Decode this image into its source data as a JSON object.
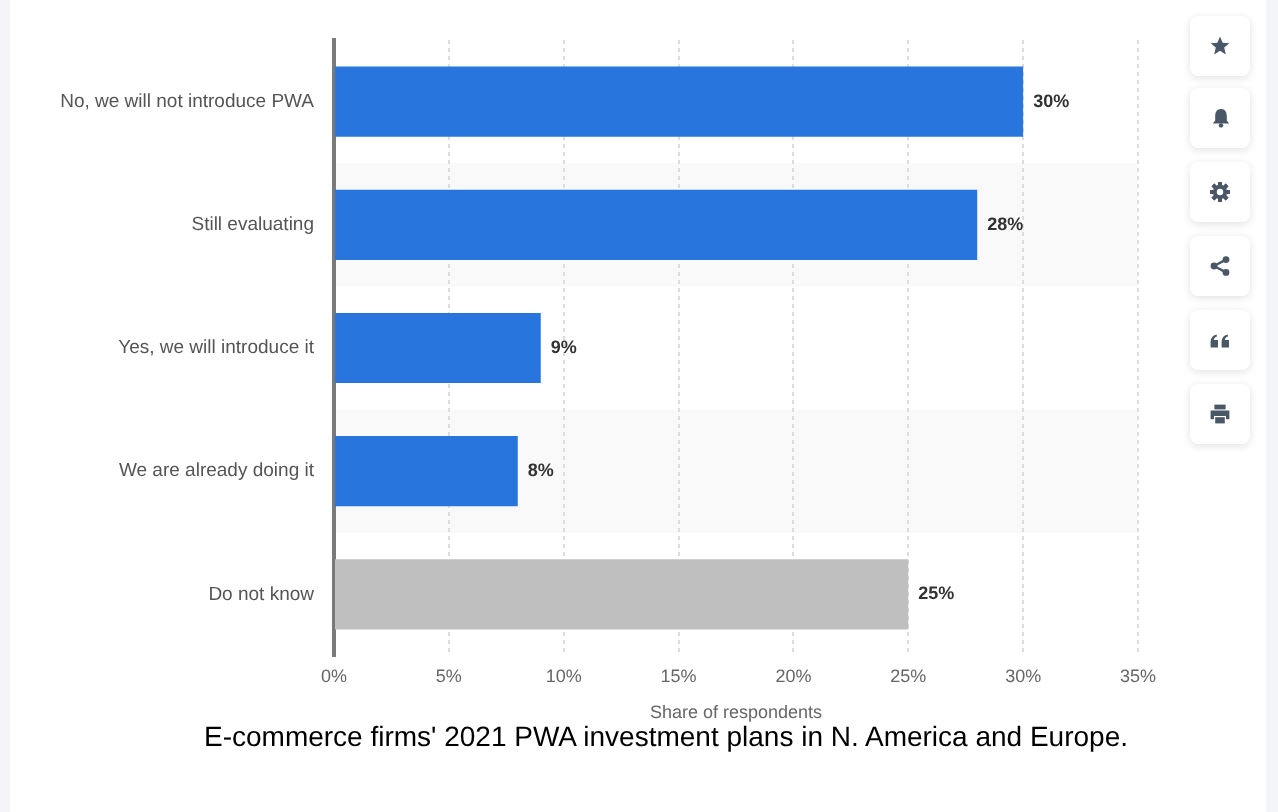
{
  "chart_data": {
    "type": "bar",
    "orientation": "horizontal",
    "title": "E-commerce firms' 2021 PWA investment plans in N. America and Europe.",
    "xlabel": "Share of respondents",
    "categories": [
      "No, we will not introduce PWA",
      "Still evaluating",
      "Yes, we will introduce it",
      "We are already doing it",
      "Do not know"
    ],
    "values": [
      30,
      28,
      9,
      8,
      25
    ],
    "colors": [
      "#2876dd",
      "#2876dd",
      "#2876dd",
      "#2876dd",
      "#bfbfbf"
    ],
    "value_labels": [
      "30%",
      "28%",
      "9%",
      "8%",
      "25%"
    ],
    "xlim": [
      0,
      35
    ],
    "xticks": [
      {
        "value": 0,
        "label": "0%"
      },
      {
        "value": 5,
        "label": "5%"
      },
      {
        "value": 10,
        "label": "10%"
      },
      {
        "value": 15,
        "label": "15%"
      },
      {
        "value": 20,
        "label": "20%"
      },
      {
        "value": 25,
        "label": "25%"
      },
      {
        "value": 30,
        "label": "30%"
      },
      {
        "value": 35,
        "label": "35%"
      }
    ],
    "grid": "x"
  }
}
